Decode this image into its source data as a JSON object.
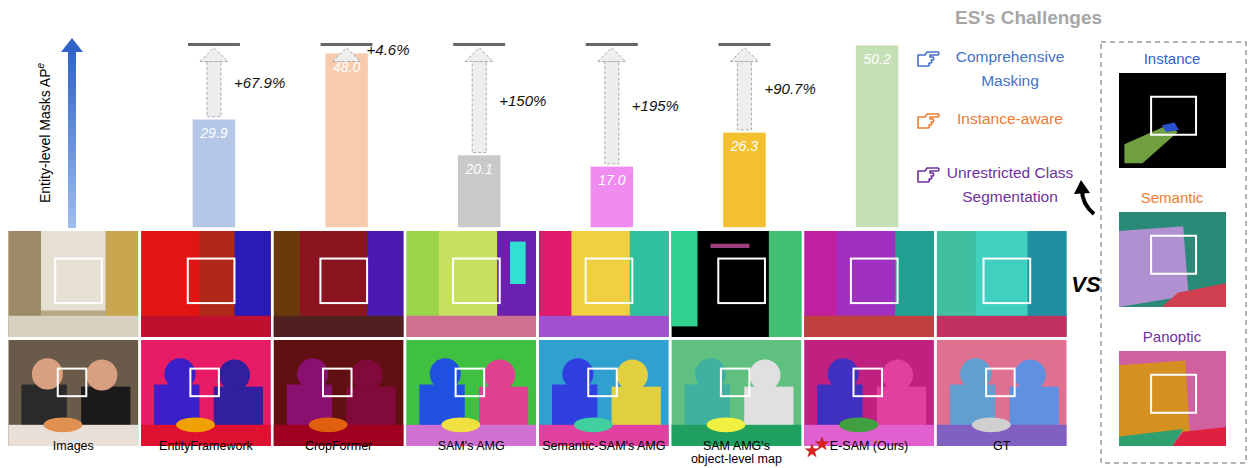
{
  "chart_data": {
    "type": "bar",
    "ylabel": "Entity-level Masks AP",
    "ylabel_superscript": "e",
    "categories": [
      "Images",
      "EntityFramework",
      "CropFormer",
      "SAM's AMG",
      "Semantic-SAM's AMG",
      "SAM AMG's object-level map",
      "E-SAM (Ours)",
      "GT"
    ],
    "values": [
      null,
      29.9,
      48.0,
      20.1,
      17.0,
      26.3,
      50.2,
      null
    ],
    "value_labels": [
      null,
      "29.9",
      "48.0",
      "20.1",
      "17.0",
      "26.3",
      "50.2",
      null
    ],
    "colors": [
      null,
      "#b4c7e7",
      "#f8cbad",
      "#c9c9c9",
      "#f08cf0",
      "#f5c030",
      "#c5e0b4",
      null
    ],
    "annotations": [
      null,
      "+67.9%",
      "+4.6%",
      "+150%",
      "+195%",
      "+90.7%",
      null,
      null
    ],
    "ylim": [
      0,
      52
    ],
    "data_labels": true,
    "tick_labels": "x"
  },
  "challenges": {
    "title": "ES's Challenges",
    "items": [
      {
        "text": "Comprehensive Masking",
        "color": "#4472c4"
      },
      {
        "text": "Instance-aware",
        "color": "#ed7d31"
      },
      {
        "text": "Unrestricted Class Segmentation",
        "color": "#7030a0"
      }
    ]
  },
  "vs": "VS",
  "comparison": [
    {
      "label": "Instance",
      "color": "#2f5fd0"
    },
    {
      "label": "Semantic",
      "color": "#ed7d31"
    },
    {
      "label": "Panoptic",
      "color": "#7030a0"
    }
  ]
}
